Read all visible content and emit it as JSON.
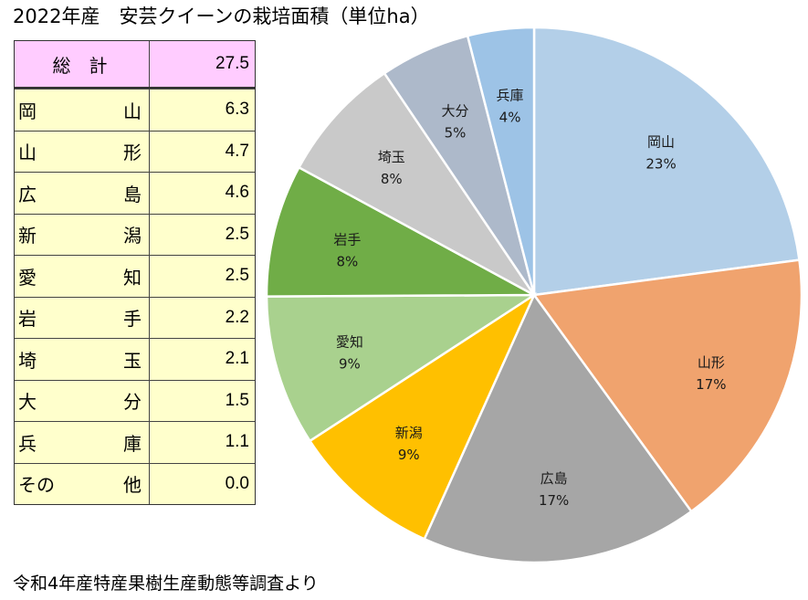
{
  "title": "2022年産　安芸クイーンの栽培面積（単位ha）",
  "source": "令和4年産特産果樹生産動態等調査より",
  "table": {
    "total": {
      "label": "総　計",
      "value": "27.5"
    },
    "rows": [
      {
        "c1": "岡",
        "c2": "山",
        "value": "6.3"
      },
      {
        "c1": "山",
        "c2": "形",
        "value": "4.7"
      },
      {
        "c1": "広",
        "c2": "島",
        "value": "4.6"
      },
      {
        "c1": "新",
        "c2": "潟",
        "value": "2.5"
      },
      {
        "c1": "愛",
        "c2": "知",
        "value": "2.5"
      },
      {
        "c1": "岩",
        "c2": "手",
        "value": "2.2"
      },
      {
        "c1": "埼",
        "c2": "玉",
        "value": "2.1"
      },
      {
        "c1": "大",
        "c2": "分",
        "value": "1.5"
      },
      {
        "c1": "兵",
        "c2": "庫",
        "value": "1.1"
      },
      {
        "c1": "その",
        "c2": "他",
        "value": "0.0"
      }
    ]
  },
  "chart_data": {
    "type": "pie",
    "title": "2022年産　安芸クイーンの栽培面積（単位ha）",
    "slices": [
      {
        "label": "岡山",
        "value": 6.3,
        "pct": "23%",
        "color": "#b3cfe8"
      },
      {
        "label": "山形",
        "value": 4.7,
        "pct": "17%",
        "color": "#f0a36e"
      },
      {
        "label": "広島",
        "value": 4.6,
        "pct": "17%",
        "color": "#a6a6a6"
      },
      {
        "label": "新潟",
        "value": 2.5,
        "pct": "9%",
        "color": "#ffc000"
      },
      {
        "label": "愛知",
        "value": 2.5,
        "pct": "9%",
        "color": "#a9d18e"
      },
      {
        "label": "岩手",
        "value": 2.2,
        "pct": "8%",
        "color": "#70ad47"
      },
      {
        "label": "埼玉",
        "value": 2.1,
        "pct": "8%",
        "color": "#c9c9c9"
      },
      {
        "label": "大分",
        "value": 1.5,
        "pct": "5%",
        "color": "#adb9ca"
      },
      {
        "label": "兵庫",
        "value": 1.1,
        "pct": "4%",
        "color": "#9dc3e6"
      }
    ],
    "start_angle_deg": 0,
    "direction": "clockwise"
  }
}
